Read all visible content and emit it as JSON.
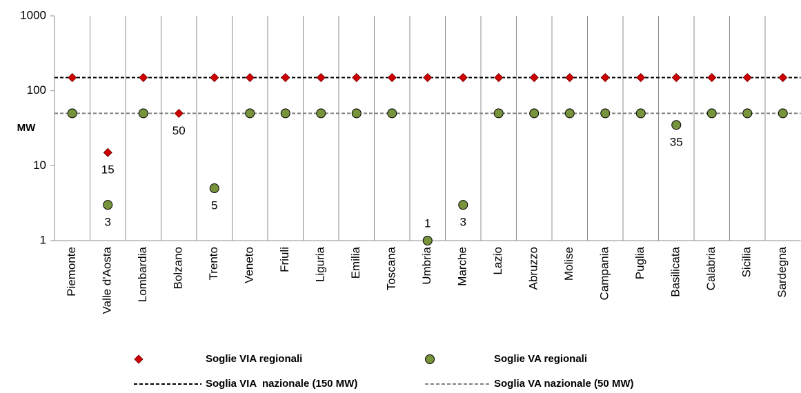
{
  "chart_data": {
    "type": "scatter",
    "ylabel": "MW",
    "log_scale": true,
    "ylim": [
      1,
      1000
    ],
    "yticks": [
      1,
      10,
      100,
      1000
    ],
    "categories": [
      "Piemonte",
      "Valle d'Aosta",
      "Lombardia",
      "Bolzano",
      "Trento",
      "Veneto",
      "Friuli",
      "Liguria",
      "Emilia",
      "Toscana",
      "Umbria",
      "Marche",
      "Lazio",
      "Abruzzo",
      "Molise",
      "Campania",
      "Puglia",
      "Basilicata",
      "Calabria",
      "Sicilia",
      "Sardegna"
    ],
    "series": [
      {
        "name": "Soglie VIA regionali",
        "color": "#d00000",
        "marker": "diamond",
        "values": [
          150,
          15,
          150,
          50,
          150,
          150,
          150,
          150,
          150,
          150,
          150,
          150,
          150,
          150,
          150,
          150,
          150,
          150,
          150,
          150,
          150
        ],
        "value_labels": [
          null,
          "15",
          null,
          "50",
          null,
          null,
          null,
          null,
          null,
          null,
          null,
          null,
          null,
          null,
          null,
          null,
          null,
          null,
          null,
          null,
          null
        ]
      },
      {
        "name": "Soglie VA regionali",
        "color": "#77933c",
        "marker": "circle",
        "values": [
          50,
          3,
          50,
          null,
          5,
          50,
          50,
          50,
          50,
          50,
          1,
          3,
          50,
          50,
          50,
          50,
          50,
          35,
          50,
          50,
          50
        ],
        "value_labels": [
          null,
          "3",
          null,
          null,
          "5",
          null,
          null,
          null,
          null,
          null,
          "1",
          "3",
          null,
          null,
          null,
          null,
          null,
          "35",
          null,
          null,
          null
        ]
      }
    ],
    "hlines": [
      {
        "name": "Soglia VIA  nazionale (150 MW)",
        "value": 150,
        "color": "#000000"
      },
      {
        "name": "Soglia VA nazionale (50 MW)",
        "value": 50,
        "color": "#808080"
      }
    ]
  }
}
